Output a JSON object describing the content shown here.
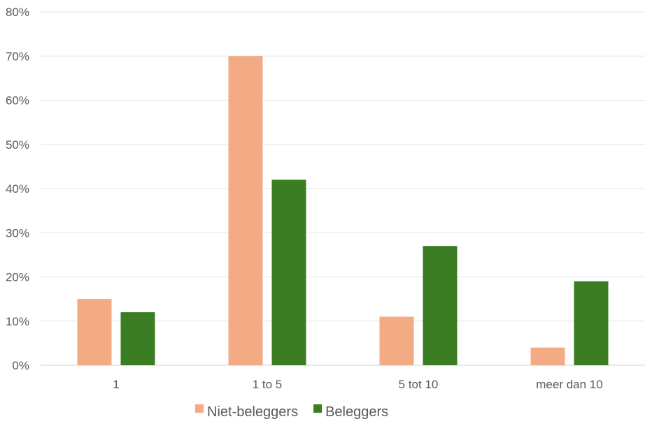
{
  "chart_data": {
    "type": "bar",
    "categories": [
      "1",
      "1 to 5",
      "5 tot 10",
      "meer dan 10"
    ],
    "series": [
      {
        "name": "Niet-beleggers",
        "color": "#F2AB85",
        "values": [
          15,
          70,
          11,
          4
        ]
      },
      {
        "name": "Beleggers",
        "color": "#3A7D23",
        "values": [
          12,
          42,
          27,
          19
        ]
      }
    ],
    "ylim": [
      0,
      80
    ],
    "yticks": [
      "0%",
      "10%",
      "20%",
      "30%",
      "40%",
      "50%",
      "60%",
      "70%",
      "80%"
    ],
    "grid": true,
    "legend_position": "bottom"
  }
}
